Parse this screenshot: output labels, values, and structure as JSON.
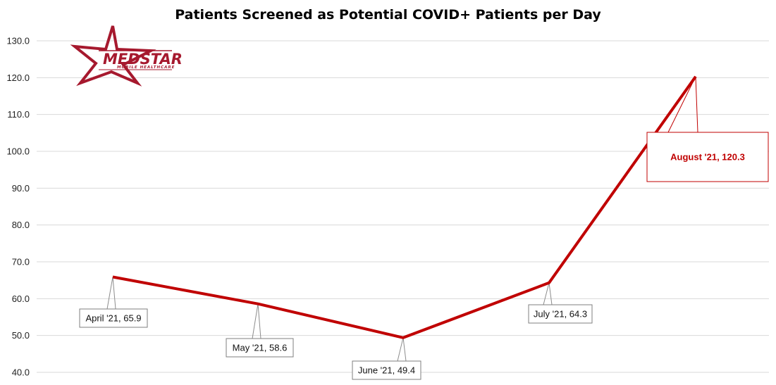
{
  "chart_data": {
    "type": "line",
    "title": "Patients Screened as Potential COVID+ Patients per Day",
    "categories": [
      "April '21",
      "May '21",
      "June '21",
      "July '21",
      "August '21"
    ],
    "series": [
      {
        "values": [
          65.9,
          58.6,
          49.4,
          64.3,
          120.3
        ]
      }
    ],
    "data_labels": [
      "April '21, 65.9",
      "May '21, 58.6",
      "June '21, 49.4",
      "July '21, 64.3",
      "August '21, 120.3"
    ],
    "yticks": [
      "40.0",
      "50.0",
      "60.0",
      "70.0",
      "80.0",
      "90.0",
      "100.0",
      "110.0",
      "120.0",
      "130.0"
    ],
    "ylim": [
      40,
      130
    ],
    "grid": true,
    "legend": "none",
    "colors": {
      "line": "#c00000",
      "grid": "#d9d9d9",
      "highlight": "#c00000"
    }
  },
  "logo": {
    "name": "MedStar Mobile Healthcare",
    "text": "MEDSTAR",
    "subtext": "MOBILE HEALTHCARE",
    "color": "#a6192e"
  }
}
